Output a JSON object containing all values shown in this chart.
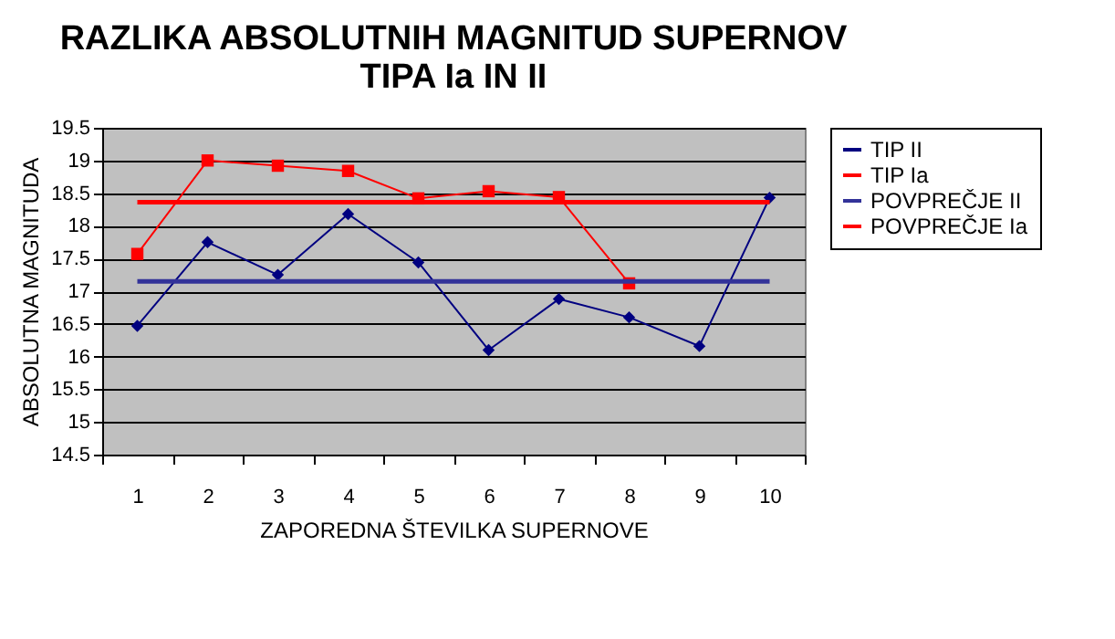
{
  "chart_data": {
    "type": "line",
    "title": "RAZLIKA ABSOLUTNIH MAGNITUD SUPERNOV\nTIPA Ia IN II",
    "xlabel": "ZAPOREDNA ŠTEVILKA SUPERNOVE",
    "ylabel": "ABSOLUTNA MAGNITUDA",
    "categories": [
      "1",
      "2",
      "3",
      "4",
      "5",
      "6",
      "7",
      "8",
      "9",
      "10"
    ],
    "series": [
      {
        "name": "TIP II",
        "color": "#000080",
        "marker": "diamond",
        "values": [
          16.47,
          17.75,
          17.25,
          18.18,
          17.44,
          16.1,
          16.88,
          16.6,
          16.16,
          18.43
        ]
      },
      {
        "name": "TIP Ia",
        "color": "#ff0000",
        "marker": "square",
        "values": [
          17.57,
          19.0,
          18.92,
          18.84,
          18.42,
          18.53,
          18.44,
          17.12,
          null,
          null
        ]
      },
      {
        "name": "POVPREČJE II",
        "color": "#333399",
        "marker": "none",
        "values": [
          17.15,
          17.15,
          17.15,
          17.15,
          17.15,
          17.15,
          17.15,
          17.15,
          17.15,
          17.15
        ]
      },
      {
        "name": "POVPREČJE Ia",
        "color": "#ff0000",
        "marker": "none",
        "values": [
          18.36,
          18.36,
          18.36,
          18.36,
          18.36,
          18.36,
          18.36,
          18.36,
          18.36,
          18.36
        ]
      }
    ],
    "ylim": [
      14.5,
      19.5
    ],
    "yticks": [
      14.5,
      15,
      15.5,
      16,
      16.5,
      17,
      17.5,
      18,
      18.5,
      19,
      19.5
    ],
    "grid": "y",
    "legend": "right"
  }
}
